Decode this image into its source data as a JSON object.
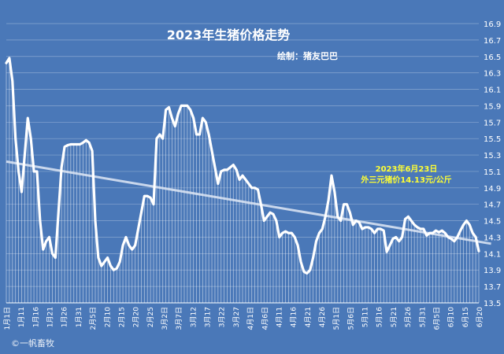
{
  "chart_data": {
    "type": "line",
    "title": "2023年生猪价格走势",
    "subtitle": "绘制：猪友巴巴",
    "annotation": [
      "2023年6月23日",
      "外三元猪价14.13元/公斤"
    ],
    "watermark": "©一帆畜牧",
    "ylim": [
      13.5,
      16.9
    ],
    "yticks": [
      "16.9",
      "16.7",
      "16.5",
      "16.3",
      "16.1",
      "15.9",
      "15.7",
      "15.5",
      "15.3",
      "15.1",
      "14.9",
      "14.7",
      "14.5",
      "14.3",
      "14.1",
      "13.9",
      "13.7",
      "13.5"
    ],
    "xticks": [
      "1月1日",
      "1月11",
      "1月16",
      "1月21",
      "1月26",
      "1月31",
      "2月5日",
      "2月10",
      "2月15",
      "2月20",
      "2月25",
      "3月2日",
      "3月7日",
      "3月12",
      "3月17",
      "3月22",
      "3月27",
      "4月1日",
      "4月6日",
      "4月11",
      "4月16",
      "4月21",
      "4月26",
      "5月1日",
      "5月6日",
      "5月11",
      "5月16",
      "5月21",
      "5月26",
      "5月31",
      "6月5日",
      "6月10",
      "6月15",
      "6月20"
    ],
    "grid": true,
    "series": [
      {
        "values": [
          16.42,
          16.48,
          16.2,
          15.5,
          15.1,
          14.85,
          15.3,
          15.75,
          15.5,
          15.1,
          15.1,
          14.5,
          14.15,
          14.25,
          14.3,
          14.1,
          14.05,
          14.6,
          15.15,
          15.4,
          15.42,
          15.43,
          15.43,
          15.43,
          15.43,
          15.45,
          15.48,
          15.45,
          15.35,
          14.5,
          14.05,
          13.95,
          14.0,
          14.05,
          13.95,
          13.9,
          13.92,
          14.0,
          14.2,
          14.3,
          14.2,
          14.15,
          14.2,
          14.4,
          14.6,
          14.8,
          14.8,
          14.78,
          14.7,
          15.5,
          15.55,
          15.5,
          15.85,
          15.88,
          15.75,
          15.65,
          15.8,
          15.9,
          15.9,
          15.9,
          15.85,
          15.75,
          15.55,
          15.55,
          15.75,
          15.7,
          15.55,
          15.35,
          15.15,
          14.95,
          15.1,
          15.12,
          15.12,
          15.15,
          15.18,
          15.12,
          15.0,
          15.05,
          15.0,
          14.95,
          14.9,
          14.9,
          14.88,
          14.7,
          14.5,
          14.55,
          14.6,
          14.58,
          14.5,
          14.3,
          14.35,
          14.37,
          14.35,
          14.35,
          14.3,
          14.2,
          14.0,
          13.88,
          13.86,
          13.9,
          14.05,
          14.25,
          14.35,
          14.4,
          14.55,
          14.75,
          15.05,
          14.85,
          14.55,
          14.5,
          14.7,
          14.7,
          14.6,
          14.45,
          14.5,
          14.48,
          14.4,
          14.42,
          14.42,
          14.4,
          14.35,
          14.4,
          14.4,
          14.38,
          14.12,
          14.2,
          14.28,
          14.3,
          14.25,
          14.3,
          14.52,
          14.55,
          14.5,
          14.45,
          14.42,
          14.4,
          14.4,
          14.32,
          14.35,
          14.35,
          14.38,
          14.36,
          14.38,
          14.35,
          14.3,
          14.28,
          14.25,
          14.3,
          14.38,
          14.45,
          14.5,
          14.45,
          14.35,
          14.3,
          14.13
        ]
      },
      {
        "type": "trend",
        "x": [
          0,
          158
        ],
        "values": [
          15.22,
          14.22
        ]
      }
    ]
  }
}
